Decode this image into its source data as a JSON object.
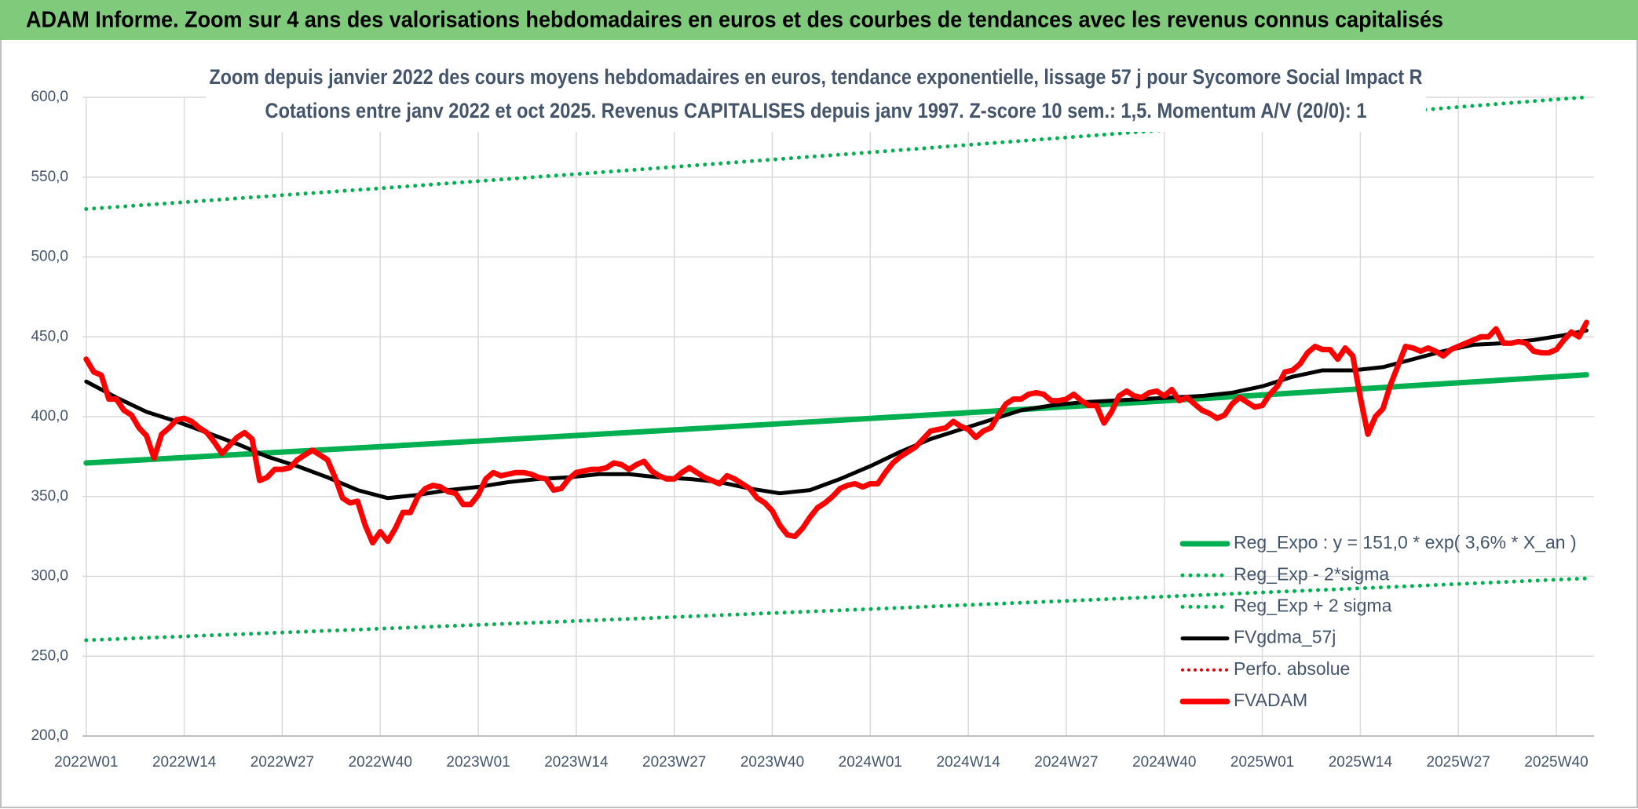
{
  "chart_data": {
    "type": "line",
    "header": "ADAM Informe. Zoom sur 4 ans des valorisations hebdomadaires en euros et des courbes de tendances avec les revenus connus capitalisés",
    "title": "Zoom depuis janvier 2022 des cours moyens hebdomadaires en euros, tendance exponentielle, lissage 57 j pour Sycomore Social Impact R",
    "subtitle": "Cotations entre janv 2022 et oct 2025. Revenus CAPITALISES depuis janv 1997. Z-score 10 sem.: 1,5. Momentum A/V (20/0): 1",
    "xlim": [
      -0.5,
      200
    ],
    "xticks": [
      {
        "value": 0,
        "label": "2022W01"
      },
      {
        "value": 13,
        "label": "2022W14"
      },
      {
        "value": 26,
        "label": "2022W27"
      },
      {
        "value": 39,
        "label": "2022W40"
      },
      {
        "value": 52,
        "label": "2023W01"
      },
      {
        "value": 65,
        "label": "2023W14"
      },
      {
        "value": 78,
        "label": "2023W27"
      },
      {
        "value": 91,
        "label": "2023W40"
      },
      {
        "value": 104,
        "label": "2024W01"
      },
      {
        "value": 117,
        "label": "2024W14"
      },
      {
        "value": 130,
        "label": "2024W27"
      },
      {
        "value": 143,
        "label": "2024W40"
      },
      {
        "value": 156,
        "label": "2025W01"
      },
      {
        "value": 169,
        "label": "2025W14"
      },
      {
        "value": 182,
        "label": "2025W27"
      },
      {
        "value": 195,
        "label": "2025W40"
      }
    ],
    "ylim": [
      200,
      600
    ],
    "yticks": [
      {
        "value": 200,
        "label": "200,0"
      },
      {
        "value": 250,
        "label": "250,0"
      },
      {
        "value": 300,
        "label": "300,0"
      },
      {
        "value": 350,
        "label": "350,0"
      },
      {
        "value": 400,
        "label": "400,0"
      },
      {
        "value": 450,
        "label": "450,0"
      },
      {
        "value": 500,
        "label": "500,0"
      },
      {
        "value": 550,
        "label": "550,0"
      },
      {
        "value": 600,
        "label": "600,0"
      }
    ],
    "grid": true,
    "series": [
      {
        "name": "Reg_Expo : y = 151,0 * exp( 3,6% *  X_an )",
        "color": "#00b050",
        "dash": "solid",
        "width": 7,
        "x": [
          0,
          13,
          26,
          39,
          52,
          65,
          78,
          91,
          104,
          117,
          130,
          143,
          156,
          169,
          182,
          195,
          199
        ],
        "values": [
          371.0,
          374.4,
          377.8,
          381.2,
          384.7,
          388.2,
          391.7,
          395.3,
          398.9,
          402.5,
          406.2,
          409.9,
          413.6,
          417.4,
          421.2,
          425.0,
          426.2
        ]
      },
      {
        "name": "Reg_Exp - 2*sigma",
        "color": "#00b050",
        "dash": "dotted",
        "width": 5,
        "x": [
          0,
          13,
          26,
          39,
          52,
          65,
          78,
          91,
          104,
          117,
          130,
          143,
          156,
          169,
          182,
          195,
          199
        ],
        "values": [
          260.0,
          262.4,
          264.8,
          267.2,
          269.6,
          272.0,
          274.5,
          277.0,
          279.5,
          282.1,
          284.6,
          287.3,
          289.9,
          292.5,
          295.2,
          297.9,
          298.7
        ]
      },
      {
        "name": "Reg_Exp + 2 sigma",
        "color": "#00b050",
        "dash": "dotted",
        "width": 5,
        "x": [
          0,
          13,
          26,
          39,
          52,
          65,
          78,
          91,
          104,
          117,
          130,
          143,
          156,
          169,
          182,
          195,
          199
        ],
        "values": [
          530.0,
          534.3,
          538.7,
          543.0,
          547.5,
          551.9,
          556.4,
          561.0,
          565.5,
          570.2,
          574.8,
          579.5,
          584.3,
          589.0,
          593.9,
          598.7,
          600.0
        ]
      },
      {
        "name": "FVgdma_57j",
        "color": "#000000",
        "dash": "solid",
        "width": 5,
        "x": [
          0,
          4,
          8,
          12,
          16,
          20,
          24,
          28,
          32,
          36,
          40,
          44,
          48,
          52,
          56,
          60,
          64,
          68,
          72,
          76,
          80,
          84,
          88,
          92,
          96,
          100,
          104,
          108,
          112,
          116,
          120,
          124,
          128,
          132,
          136,
          140,
          144,
          148,
          152,
          156,
          160,
          164,
          168,
          172,
          176,
          180,
          184,
          188,
          192,
          196,
          199
        ],
        "values": [
          422,
          412,
          403,
          397,
          390,
          383,
          375,
          369,
          362,
          354,
          349,
          351,
          354,
          356,
          359,
          361,
          362,
          364,
          364,
          362,
          361,
          359,
          355,
          352,
          354,
          361,
          369,
          378,
          386,
          392,
          398,
          404,
          407,
          409,
          410,
          411,
          412,
          413,
          415,
          419,
          425,
          429,
          429,
          431,
          436,
          441,
          445,
          446,
          448,
          451,
          454
        ]
      },
      {
        "name": "Perfo. absolue",
        "color": "#e00000",
        "dash": "dotted",
        "width": 4,
        "x": [],
        "values": []
      },
      {
        "name": "FVADAM",
        "color": "#ff0000",
        "dash": "solid",
        "width": 7,
        "x": [
          0,
          1,
          2,
          3,
          4,
          5,
          6,
          7,
          8,
          9,
          10,
          11,
          12,
          13,
          14,
          15,
          16,
          17,
          18,
          19,
          20,
          21,
          22,
          23,
          24,
          25,
          26,
          27,
          28,
          29,
          30,
          31,
          32,
          33,
          34,
          35,
          36,
          37,
          38,
          39,
          40,
          41,
          42,
          43,
          44,
          45,
          46,
          47,
          48,
          49,
          50,
          51,
          52,
          53,
          54,
          55,
          56,
          57,
          58,
          59,
          60,
          61,
          62,
          63,
          64,
          65,
          66,
          67,
          68,
          69,
          70,
          71,
          72,
          73,
          74,
          75,
          76,
          77,
          78,
          79,
          80,
          81,
          82,
          83,
          84,
          85,
          86,
          87,
          88,
          89,
          90,
          91,
          92,
          93,
          94,
          95,
          96,
          97,
          98,
          99,
          100,
          101,
          102,
          103,
          104,
          105,
          106,
          107,
          108,
          109,
          110,
          111,
          112,
          113,
          114,
          115,
          116,
          117,
          118,
          119,
          120,
          121,
          122,
          123,
          124,
          125,
          126,
          127,
          128,
          129,
          130,
          131,
          132,
          133,
          134,
          135,
          136,
          137,
          138,
          139,
          140,
          141,
          142,
          143,
          144,
          145,
          146,
          147,
          148,
          149,
          150,
          151,
          152,
          153,
          154,
          155,
          156,
          157,
          158,
          159,
          160,
          161,
          162,
          163,
          164,
          165,
          166,
          167,
          168,
          169,
          170,
          171,
          172,
          173,
          174,
          175,
          176,
          177,
          178,
          179,
          180,
          181,
          182,
          183,
          184,
          185,
          186,
          187,
          188,
          189,
          190,
          191,
          192,
          193,
          194,
          195,
          196,
          197,
          198,
          199
        ],
        "values": [
          436,
          428,
          426,
          411,
          411,
          404,
          401,
          393,
          388,
          374,
          389,
          393,
          398,
          399,
          397,
          393,
          390,
          384,
          377,
          382,
          387,
          390,
          386,
          360,
          362,
          367,
          367,
          368,
          373,
          376,
          379,
          376,
          373,
          362,
          349,
          346,
          347,
          332,
          321,
          328,
          322,
          330,
          340,
          340,
          350,
          355,
          357,
          356,
          353,
          352,
          345,
          345,
          351,
          361,
          365,
          363,
          364,
          365,
          365,
          364,
          362,
          361,
          354,
          355,
          361,
          365,
          366,
          367,
          367,
          368,
          371,
          370,
          367,
          370,
          372,
          366,
          363,
          361,
          361,
          365,
          368,
          365,
          362,
          360,
          358,
          363,
          361,
          358,
          355,
          349,
          346,
          341,
          332,
          326,
          325,
          330,
          337,
          343,
          346,
          350,
          355,
          357,
          358,
          356,
          358,
          358,
          365,
          371,
          375,
          378,
          381,
          386,
          391,
          392,
          393,
          397,
          394,
          392,
          387,
          391,
          393,
          401,
          408,
          411,
          411,
          414,
          415,
          414,
          410,
          410,
          411,
          414,
          410,
          407,
          407,
          396,
          403,
          413,
          416,
          413,
          412,
          415,
          416,
          413,
          417,
          410,
          412,
          408,
          404,
          402,
          399,
          401,
          408,
          412,
          409,
          406,
          407,
          414,
          419,
          428,
          429,
          433,
          440,
          444,
          442,
          442,
          436,
          443,
          438,
          412,
          389,
          400,
          405,
          420,
          432,
          444,
          443,
          441,
          443,
          441,
          438,
          442,
          444,
          446,
          448,
          450,
          450,
          455,
          446,
          446,
          447,
          446,
          441,
          440,
          440,
          442,
          448,
          453,
          450,
          459
        ]
      }
    ]
  }
}
